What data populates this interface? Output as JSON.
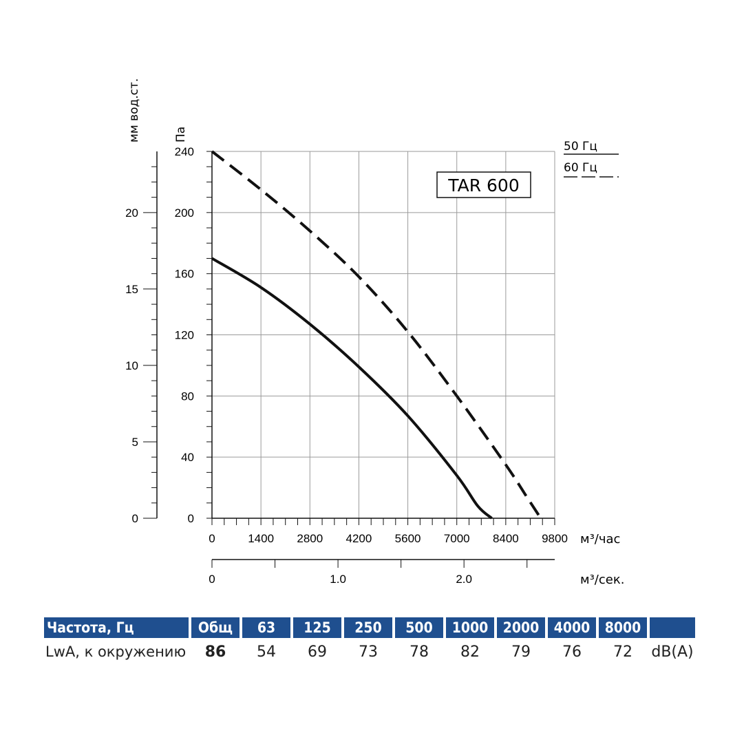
{
  "chart_data": {
    "type": "line",
    "model_label": "TAR 600",
    "y_primary": {
      "label": "Па",
      "ticks": [
        "0",
        "40",
        "80",
        "120",
        "160",
        "200",
        "240"
      ],
      "range": [
        0,
        240
      ]
    },
    "y_secondary": {
      "label": "мм вод.ст.",
      "ticks": [
        "0",
        "5",
        "10",
        "15",
        "20"
      ],
      "range": [
        0,
        24
      ]
    },
    "x_primary": {
      "label": "м³/час",
      "ticks": [
        "0",
        "1400",
        "2800",
        "4200",
        "5600",
        "7000",
        "8400",
        "9800"
      ],
      "range": [
        0,
        9800
      ]
    },
    "x_secondary": {
      "label": "м³/сек.",
      "ticks": [
        "0",
        "1.0",
        "2.0"
      ],
      "range": [
        0,
        2.72
      ]
    },
    "legend": [
      {
        "name": "50 Гц",
        "style": "solid"
      },
      {
        "name": "60 Гц",
        "style": "dashed"
      }
    ],
    "series": [
      {
        "name": "50 Гц",
        "style": "solid",
        "x": [
          0,
          1400,
          2800,
          4200,
          5600,
          7000,
          7600,
          8000
        ],
        "y": [
          170,
          151,
          127,
          99,
          67,
          28,
          8,
          0
        ]
      },
      {
        "name": "60 Гц",
        "style": "dashed",
        "x": [
          0,
          1400,
          2800,
          4200,
          5600,
          7000,
          8400,
          9000,
          9400
        ],
        "y": [
          240,
          215,
          188,
          158,
          122,
          80,
          35,
          14,
          0
        ]
      }
    ]
  },
  "noise_table": {
    "header": [
      "Частота, Гц",
      "Общ",
      "63",
      "125",
      "250",
      "500",
      "1000",
      "2000",
      "4000",
      "8000",
      ""
    ],
    "row": [
      "LwA, к окружению",
      "86",
      "54",
      "69",
      "73",
      "78",
      "82",
      "79",
      "76",
      "72",
      "dB(A)"
    ]
  }
}
